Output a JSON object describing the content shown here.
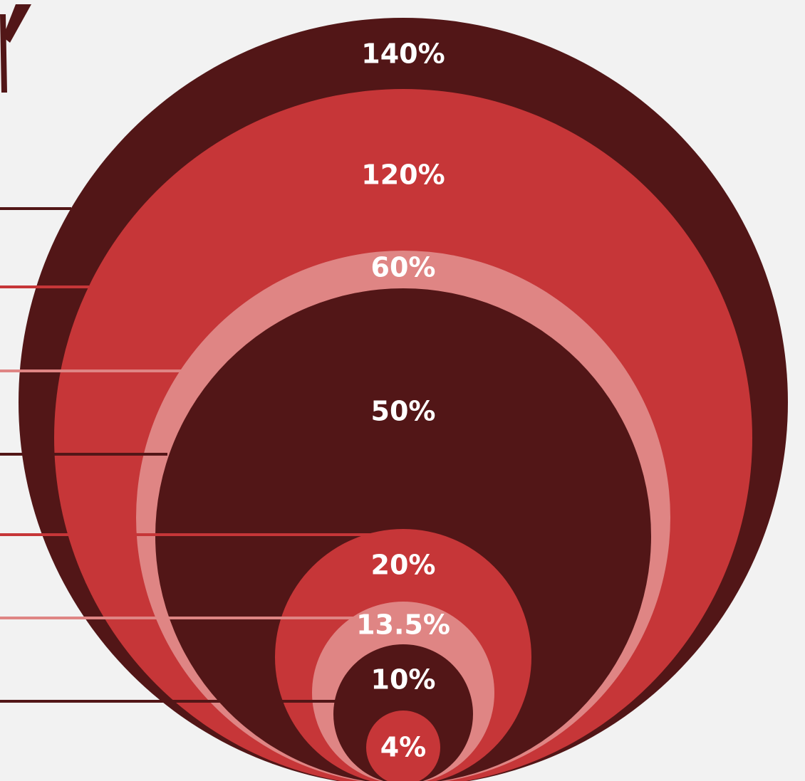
{
  "chart_data": {
    "type": "nested-circles",
    "title": "",
    "series": [
      {
        "label": "140%",
        "value": 140,
        "color": "#521617"
      },
      {
        "label": "120%",
        "value": 120,
        "color": "#c63638"
      },
      {
        "label": "60%",
        "value": 60,
        "color": "#df8584"
      },
      {
        "label": "50%",
        "value": 50,
        "color": "#521617"
      },
      {
        "label": "20%",
        "value": 20,
        "color": "#c63638"
      },
      {
        "label": "13.5%",
        "value": 13.5,
        "color": "#df8584"
      },
      {
        "label": "10%",
        "value": 10,
        "color": "#521617"
      },
      {
        "label": "4%",
        "value": 4,
        "color": "#c63638"
      }
    ]
  },
  "colors": {
    "background": "#f2f2f2",
    "dark": "#521617",
    "red": "#c63638",
    "pink": "#df8584"
  }
}
